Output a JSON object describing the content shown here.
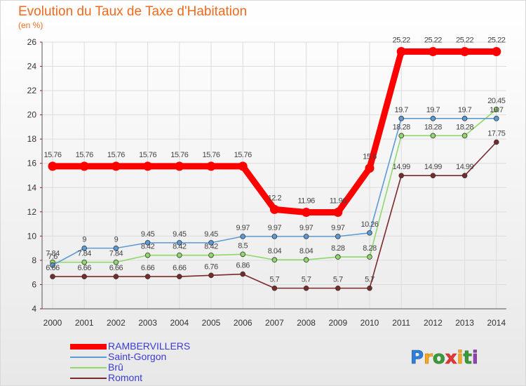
{
  "header": {
    "title": "Evolution du Taux de Taxe d'Habitation",
    "unit": "(en %)"
  },
  "logo": {
    "text": "Proxiti"
  },
  "chart_data": {
    "type": "line",
    "title": "Evolution du Taux de Taxe d'Habitation",
    "ylabel": "(en %)",
    "xlabel": "",
    "x": [
      "2000",
      "2001",
      "2002",
      "2003",
      "2004",
      "2005",
      "2006",
      "2007",
      "2008",
      "2009",
      "2010",
      "2011",
      "2012",
      "2013",
      "2014"
    ],
    "ylim": [
      4,
      26
    ],
    "yticks": [
      4,
      6,
      8,
      10,
      12,
      14,
      16,
      18,
      20,
      22,
      24,
      26
    ],
    "grid": true,
    "legend": "bottom-left",
    "series": [
      {
        "name": "RAMBERVILLERS",
        "color": "#ff0000",
        "values": [
          15.76,
          15.76,
          15.76,
          15.76,
          15.76,
          15.76,
          15.76,
          12.2,
          11.96,
          11.96,
          15.6,
          25.22,
          25.22,
          25.22,
          25.22
        ],
        "labels": [
          "15.76",
          "15.76",
          "15.76",
          "15.76",
          "15.76",
          "15.76",
          "15.76",
          "12.2",
          "11.96",
          "11.96",
          "15.6",
          "25.22",
          "25.22",
          "25.22",
          "25.22"
        ]
      },
      {
        "name": "Saint-Gorgon",
        "color": "#5b9bd5",
        "values": [
          7.6,
          9,
          9,
          9.45,
          9.45,
          9.45,
          9.97,
          9.97,
          9.97,
          9.97,
          10.26,
          19.7,
          19.7,
          19.7,
          19.7
        ],
        "labels": [
          "7.6",
          "9",
          "9",
          "9.45",
          "9.45",
          "9.45",
          "9.97",
          "9.97",
          "9.97",
          "9.97",
          "10.26",
          "19.7",
          "19.7",
          "19.7",
          "19.7"
        ]
      },
      {
        "name": "Brû",
        "color": "#8fd86a",
        "values": [
          7.84,
          7.84,
          7.84,
          8.42,
          8.42,
          8.42,
          8.5,
          8.04,
          8.04,
          8.28,
          8.28,
          18.28,
          18.28,
          18.28,
          20.45
        ],
        "labels": [
          "7.84",
          "7.84",
          "7.84",
          "8.42",
          "8.42",
          "8.42",
          "8.5",
          "8.04",
          "8.04",
          "8.28",
          "8.28",
          "18.28",
          "18.28",
          "18.28",
          "20.45"
        ]
      },
      {
        "name": "Romont",
        "color": "#7a2a2a",
        "values": [
          6.66,
          6.66,
          6.66,
          6.66,
          6.66,
          6.76,
          6.86,
          5.7,
          5.7,
          5.7,
          5.7,
          14.99,
          14.99,
          14.99,
          17.75
        ],
        "labels": [
          "6.66",
          "6.66",
          "6.66",
          "6.66",
          "6.66",
          "6.76",
          "6.86",
          "5.7",
          "5.7",
          "5.7",
          "5.7",
          "14.99",
          "14.99",
          "14.99",
          "17.75"
        ]
      }
    ]
  }
}
